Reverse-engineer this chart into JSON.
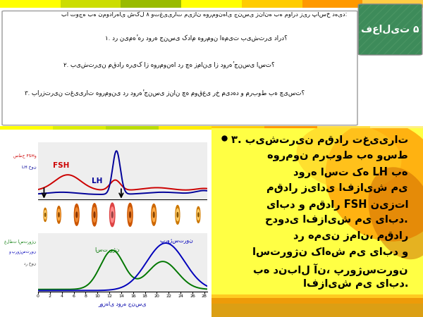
{
  "title_box": "فعالیت ۵",
  "question_line0": "با توجه به نمودارهای شکل ۸ وتغییرات میزان هورمون‌های جنسی زنانه به موارد زیر پاسخ دهید:",
  "q1": "۱. در نیمهٔ هر دوره جنسی کدام هورمون اهمیت بیشتری دارد؟",
  "q2": "۲. بیشترین مقدار هریک از هورمون‌ها در چه زمانی از دورهٔ جنسی است؟",
  "q3": "۳. بارزترین تغییرات هورمونی در دورهٔ جنسی زنان چه موقعی رخ می‌دهد و مربوط به چیست؟",
  "ans_line1": "۳. بیشترین مقدار تغییرات",
  "ans_line2": "هورمون مربوط به وسط",
  "ans_line3": "دوره است که LH به",
  "ans_line4": "مقدار زیادی افزایش می",
  "ans_line5": "یابد و مقدار FSH نیزتا",
  "ans_line6": "حدودی افزایش می یابد.",
  "ans_line7": "در همین زمان، مقدار",
  "ans_line8": "استروژن کاهش می یابد و",
  "ans_line9": "به دنبال آن، پروژسترون",
  "ans_line10": "افزایش می یابد.",
  "fsh_label": "FSH",
  "lh_label": "LH",
  "estrogen_label": "استروژن",
  "progesterone_label": "پروژسترون",
  "x_axis_label": "روزهای دوره جنسی",
  "yleft_label1": "سطح FSHو",
  "yleft_label2": "LH خون",
  "yleft2_label1": "غلظت استروژن",
  "yleft2_label2": "و پروژسترون",
  "yleft2_label3": "در خون",
  "x_ticks": [
    0,
    2,
    4,
    6,
    8,
    10,
    12,
    14,
    16,
    18,
    20,
    22,
    24,
    26,
    28
  ],
  "bg_color": "#ffffff",
  "top_box_color": "#ffffff",
  "top_box_border": "#aaaaaa",
  "title_bg": "#3d8b5a",
  "title_border": "#cccccc",
  "title_color": "#ffffff",
  "fsh_color": "#cc0000",
  "lh_color": "#000099",
  "estrogen_color": "#007700",
  "progesterone_color": "#0000bb",
  "answer_yellow": "#ffff44",
  "answer_orange": "#ff9900",
  "answer_orange2": "#ffaa00",
  "answer_dark_orange": "#cc6600",
  "bottom_bar_color": "#8B5A00",
  "top_stripe_yellow": "#ffff00",
  "top_stripe_green": "#88cc00",
  "chart_bg": "#e8e8e8"
}
